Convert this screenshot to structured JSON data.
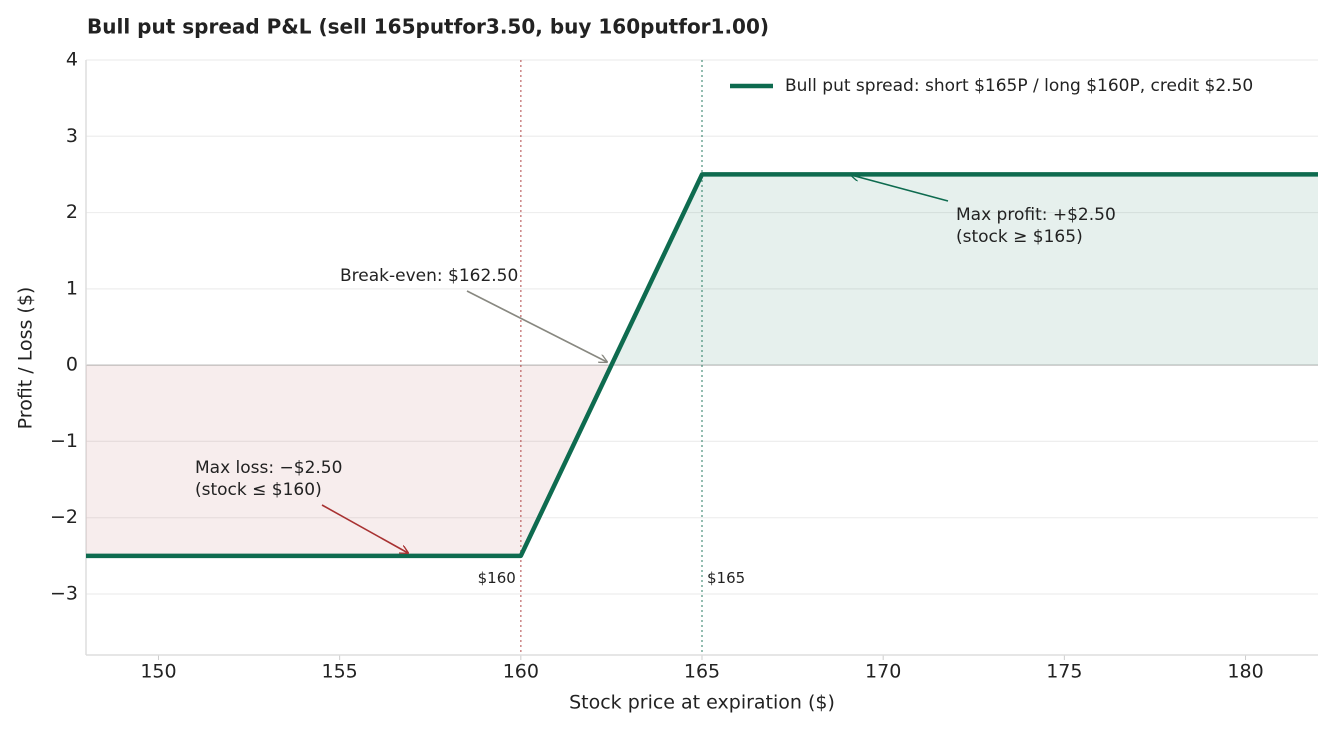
{
  "chart_data": {
    "type": "line",
    "title": "Bull put spread P&L  (sell 165putfor3.50, buy 160putfor1.00)",
    "xlabel": "Stock price at expiration ($)",
    "ylabel": "Profit / Loss ($)",
    "x": [
      148,
      160,
      165,
      182
    ],
    "series": [
      {
        "name": "Bull put spread: short $165P / long $160P, credit $2.50",
        "color": "#0e6b4f",
        "values": [
          -2.5,
          -2.5,
          2.5,
          2.5
        ]
      }
    ],
    "xlim": [
      148,
      182
    ],
    "ylim": [
      -3.8,
      4
    ],
    "xticks": [
      150,
      155,
      160,
      165,
      170,
      175,
      180
    ],
    "yticks": [
      {
        "value": -3,
        "label": "−3"
      },
      {
        "value": -2,
        "label": "−2"
      },
      {
        "value": -1,
        "label": "−1"
      },
      0,
      1,
      2,
      3,
      4
    ],
    "grid": true,
    "legend": "upper right",
    "vlines": [
      {
        "x": 160,
        "label": "$160",
        "color": "#a83232"
      },
      {
        "x": 165,
        "label": "$165",
        "color": "#0e6b4f"
      }
    ],
    "annotations": [
      {
        "lines": [
          "Break-even: $162.50"
        ],
        "color": "#888880"
      },
      {
        "lines": [
          "Max profit: +$2.50",
          "(stock ≥ $165)"
        ],
        "color": "#0e6b4f"
      },
      {
        "lines": [
          "Max loss: −$2.50",
          "(stock ≤ $160)"
        ],
        "color": "#a83232"
      }
    ]
  }
}
